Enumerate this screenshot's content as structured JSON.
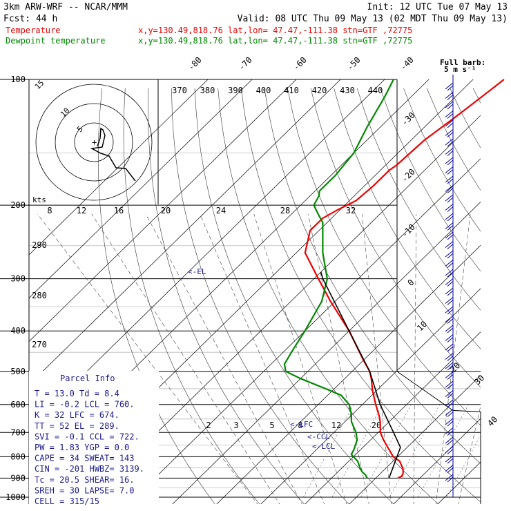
{
  "header": {
    "model": "3km ARW-WRF -- NCAR/MMM",
    "init": "Init: 12 UTC Tue 07 May 13",
    "fcst": "Fcst:    44 h",
    "valid": "Valid: 08 UTC Thu 09 May 13 (02 MDT Thu 09 May 13)",
    "temp_label": "Temperature",
    "dew_label": "Dewpoint temperature",
    "location": "x,y=130.49,818.76   lat,lon= 47.47,-111.38   stn=GTF ,72775"
  },
  "colors": {
    "temperature": "#ee0000",
    "dewpoint": "#008800",
    "parcel": "#000000",
    "info": "#1a1a8c",
    "wind": "#000099"
  },
  "chart_data": {
    "type": "line",
    "title": "",
    "xlabel": "",
    "ylabel": "",
    "y_scale": "log-pressure",
    "pressure_levels": [
      "100",
      "200",
      "300",
      "400",
      "500",
      "600",
      "700",
      "800",
      "900",
      "1000"
    ],
    "isotherm_labels": [
      "-80",
      "-70",
      "-60",
      "-50",
      "-40",
      "-30",
      "-20",
      "-10",
      "0",
      "10",
      "20",
      "30",
      "40"
    ],
    "theta_labels": [
      "370",
      "380",
      "390",
      "400",
      "410",
      "420",
      "430",
      "440"
    ],
    "theta_left_labels": [
      "290",
      "280",
      "270"
    ],
    "mixing_ratio_labels": [
      "2",
      "3",
      "5",
      "8",
      "12",
      "20"
    ],
    "grid": true,
    "series": [
      {
        "name": "Temperature",
        "pressure": [
          900,
          890,
          875,
          855,
          820,
          800,
          770,
          730,
          700,
          660,
          640,
          600,
          555,
          520,
          500,
          470,
          400,
          340,
          300,
          260,
          230,
          215,
          205,
          195,
          180,
          165,
          160,
          140,
          120,
          105,
          100
        ],
        "values": [
          15.0,
          15.5,
          15.0,
          14.0,
          11.5,
          9.0,
          6.5,
          3.0,
          0.5,
          -2.0,
          -3.5,
          -7.0,
          -11.0,
          -14.0,
          -16.0,
          -20.0,
          -30.0,
          -41.0,
          -49.0,
          -58.0,
          -62.0,
          -62.0,
          -60.5,
          -58.5,
          -58.0,
          -58.0,
          -57.5,
          -57.0,
          -55.0,
          -53.5,
          -53.0
        ]
      },
      {
        "name": "Dewpoint temperature",
        "pressure": [
          900,
          885,
          870,
          850,
          820,
          800,
          790,
          770,
          730,
          700,
          660,
          630,
          600,
          570,
          550,
          520,
          500,
          480,
          440,
          400,
          340,
          300,
          260,
          220,
          210,
          200,
          190,
          185,
          170,
          150,
          130,
          110,
          100
        ],
        "values": [
          8.0,
          7.0,
          5.5,
          4.0,
          2.0,
          0.0,
          -1.0,
          -1.5,
          -3.0,
          -5.0,
          -8.5,
          -10.5,
          -13.0,
          -17.0,
          -22.0,
          -30.0,
          -35.0,
          -37.0,
          -38.5,
          -40.0,
          -43.0,
          -47.0,
          -54.0,
          -61.0,
          -64.0,
          -67.0,
          -68.0,
          -69.0,
          -69.0,
          -70.0,
          -73.0,
          -76.0,
          -78.0
        ]
      }
    ]
  },
  "hodograph": {
    "ring_labels": [
      "5",
      "10",
      "15"
    ],
    "kts_label": "kts"
  },
  "parcel_annotations": {
    "lfc": "<-LFC",
    "ccl": "<-CCL",
    "lcl": "<-LCL",
    "el": "<-EL"
  },
  "parcel_info": {
    "title": "Parcel Info",
    "rows": [
      "T  =    13.0 Td =   8.4",
      "LI =    -0.2 LCL =  760.",
      "K  =      32 LFC =  674.",
      "TT =      52 EL  =  289.",
      "SVI =   -0.1 CCL =  722.",
      "PW =    1.83 YGP =   0.0",
      "CAPE =    34 SWEAT=  143",
      "CIN  =  -201 HWBZ= 3139.",
      "Tc  =   20.5 SHEAR=  16.",
      "SREH =    30 LAPSE=  7.0",
      "CELL = 315/15"
    ]
  },
  "wind": {
    "label1": "Full barb:",
    "label2": "5 m s⁻¹"
  }
}
